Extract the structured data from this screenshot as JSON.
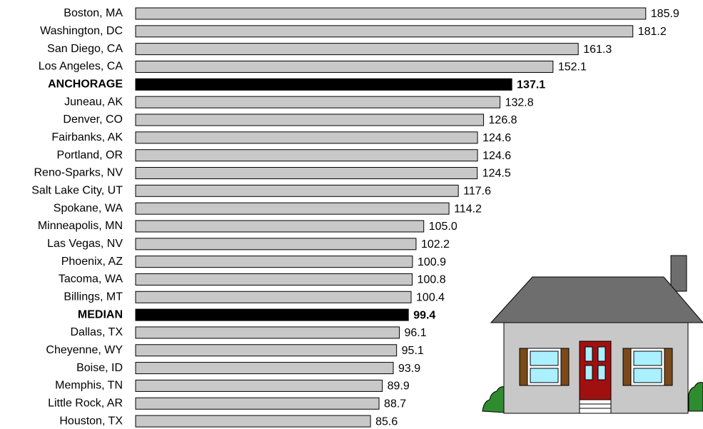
{
  "chart_data": {
    "type": "bar",
    "orientation": "horizontal",
    "categories": [
      "Boston, MA",
      "Washington, DC",
      "San Diego, CA",
      "Los Angeles, CA",
      "ANCHORAGE",
      "Juneau, AK",
      "Denver, CO",
      "Fairbanks, AK",
      "Portland, OR",
      "Reno-Sparks, NV",
      "Salt Lake City, UT",
      "Spokane, WA",
      "Minneapolis, MN",
      "Las Vegas, NV",
      "Phoenix, AZ",
      "Tacoma, WA",
      "Billings, MT",
      "MEDIAN",
      "Dallas, TX",
      "Cheyenne, WY",
      "Boise, ID",
      "Memphis, TN",
      "Little Rock, AR",
      "Houston, TX"
    ],
    "values": [
      185.9,
      181.2,
      161.3,
      152.1,
      137.1,
      132.8,
      126.8,
      124.6,
      124.6,
      124.5,
      117.6,
      114.2,
      105.0,
      102.2,
      100.9,
      100.8,
      100.4,
      99.4,
      96.1,
      95.1,
      93.9,
      89.9,
      88.7,
      85.6
    ],
    "value_labels": [
      "185.9",
      "181.2",
      "161.3",
      "152.1",
      "137.1",
      "132.8",
      "126.8",
      "124.6",
      "124.6",
      "124.5",
      "117.6",
      "114.2",
      "105.0",
      "102.2",
      "100.9",
      "100.8",
      "100.4",
      "99.4",
      "96.1",
      "95.1",
      "93.9",
      "89.9",
      "88.7",
      "85.6"
    ],
    "colors": [
      "#c8c8c8",
      "#c8c8c8",
      "#c8c8c8",
      "#c8c8c8",
      "#000000",
      "#c8c8c8",
      "#c8c8c8",
      "#c8c8c8",
      "#c8c8c8",
      "#c8c8c8",
      "#c8c8c8",
      "#c8c8c8",
      "#c8c8c8",
      "#c8c8c8",
      "#c8c8c8",
      "#c8c8c8",
      "#c8c8c8",
      "#000000",
      "#c8c8c8",
      "#c8c8c8",
      "#c8c8c8",
      "#c8c8c8",
      "#c8c8c8",
      "#c8c8c8"
    ],
    "xlim": [
      0,
      200
    ]
  }
}
